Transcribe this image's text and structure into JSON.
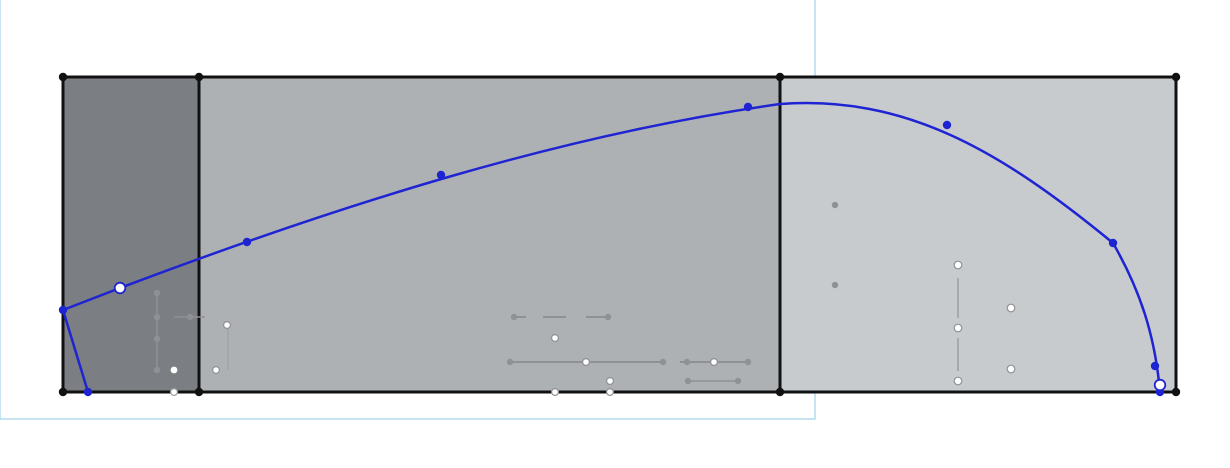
{
  "app": {
    "view": "sketch-canvas",
    "mode": "curve-edit"
  },
  "colors": {
    "background": "#ffffff",
    "viewport_frame": "#8ecae6",
    "panel_left": "#7b7e82",
    "panel_middle": "#aeb1b4",
    "panel_right": "#c8cbce",
    "panel_border": "#111111",
    "curve": "#1f24d2",
    "constraint_gray": "#8f9194",
    "point_open_fill": "#ffffff"
  },
  "icons": {
    "selected_point": "open-circle-point-icon",
    "curve_point": "filled-blue-point-icon",
    "corner_point": "black-vertex-icon",
    "construction_point": "gray-constraint-point-icon"
  },
  "texts": {}
}
